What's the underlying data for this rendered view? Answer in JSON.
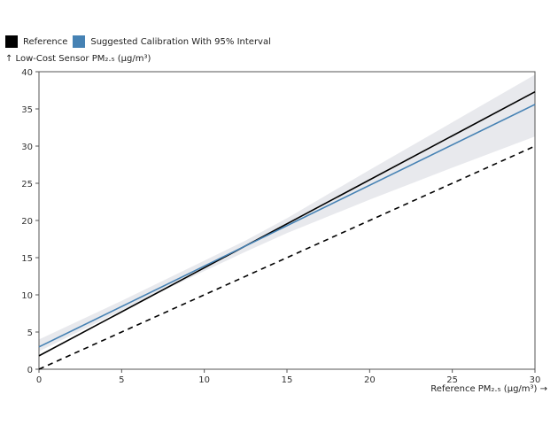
{
  "legend": {
    "items": [
      {
        "label": "Reference",
        "color": "#000000"
      },
      {
        "label": "Suggested Calibration With 95% Interval",
        "color": "#4682b4"
      }
    ]
  },
  "chart_data": {
    "type": "line",
    "xlabel": "Reference PM₂.₅ (μg/m³) →",
    "ylabel": "↑ Low-Cost Sensor PM₂.₅ (μg/m³)",
    "xlim": [
      0,
      30
    ],
    "ylim": [
      0,
      40
    ],
    "xticks": [
      0,
      5,
      10,
      15,
      20,
      25,
      30
    ],
    "yticks": [
      0,
      5,
      10,
      15,
      20,
      25,
      30,
      35,
      40
    ],
    "grid": false,
    "legend_position": "top-left",
    "series": [
      {
        "name": "Reference",
        "color": "#000000",
        "style": "solid",
        "x": [
          0,
          30
        ],
        "y": [
          1.8,
          37.3
        ]
      },
      {
        "name": "Suggested Calibration With 95% Interval",
        "color": "#4682b4",
        "style": "solid",
        "x": [
          0,
          30
        ],
        "y": [
          3.0,
          35.6
        ],
        "interval": {
          "x": [
            0,
            5,
            10,
            12.5,
            15,
            20,
            25,
            30
          ],
          "lower": [
            2.4,
            7.9,
            13.2,
            15.8,
            18.3,
            22.8,
            27.1,
            31.3
          ],
          "upper": [
            4.0,
            9.2,
            14.6,
            17.3,
            20.3,
            26.8,
            33.2,
            39.6
          ],
          "color": "#e8e9ed"
        }
      },
      {
        "color": "#000000",
        "style": "dashed",
        "x": [
          0,
          30
        ],
        "y": [
          0,
          30
        ]
      }
    ]
  }
}
